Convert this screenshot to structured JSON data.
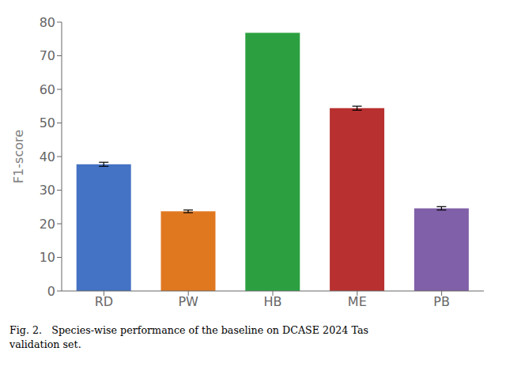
{
  "chart_data": {
    "type": "bar",
    "categories": [
      "RD",
      "PW",
      "HB",
      "ME",
      "PB"
    ],
    "values": [
      37.7,
      23.7,
      76.8,
      54.4,
      24.6
    ],
    "errors": [
      0.6,
      0.4,
      0.0,
      0.6,
      0.5
    ],
    "colors": [
      "#4472C4",
      "#E07820",
      "#2CA040",
      "#B83030",
      "#8060A8"
    ],
    "ylabel": "F1-score",
    "ylim": [
      0,
      80
    ],
    "yticks": [
      0,
      10,
      20,
      30,
      40,
      50,
      60,
      70,
      80
    ],
    "grid": false,
    "annotations": [
      "Fig. 2.   Species-wise performance of the baseline on DCASE 2024 Tas",
      "validation set."
    ]
  }
}
